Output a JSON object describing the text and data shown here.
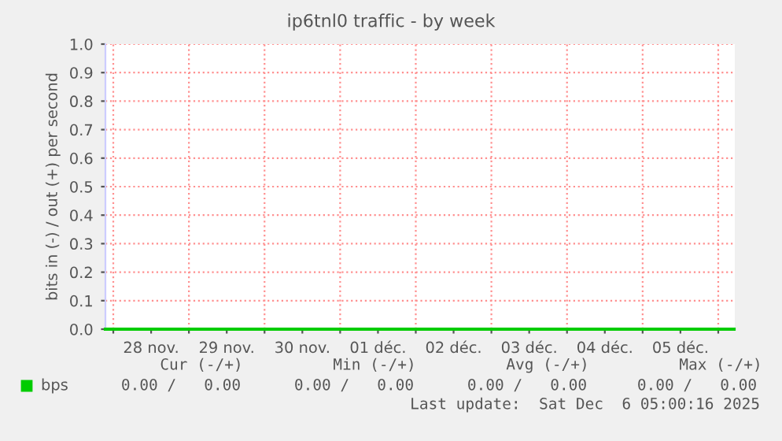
{
  "chart_data": {
    "type": "line",
    "title": "ip6tnl0 traffic - by week",
    "ylabel": "bits in (-) / out (+) per second",
    "xlim": [
      "2025-11-27T21:30",
      "2025-12-06T05:15"
    ],
    "xticks": [
      {
        "value": "2025-11-28",
        "label": null
      },
      {
        "value": "2025-11-28T12:00",
        "label": "28 nov."
      },
      {
        "value": "2025-11-29",
        "label": null
      },
      {
        "value": "2025-11-29T12:00",
        "label": "29 nov."
      },
      {
        "value": "2025-11-30",
        "label": null
      },
      {
        "value": "2025-11-30T12:00",
        "label": "30 nov."
      },
      {
        "value": "2025-12-01",
        "label": null
      },
      {
        "value": "2025-12-01T12:00",
        "label": "01 déc."
      },
      {
        "value": "2025-12-02",
        "label": null
      },
      {
        "value": "2025-12-02T12:00",
        "label": "02 déc."
      },
      {
        "value": "2025-12-03",
        "label": null
      },
      {
        "value": "2025-12-03T12:00",
        "label": "03 déc."
      },
      {
        "value": "2025-12-04",
        "label": null
      },
      {
        "value": "2025-12-04T12:00",
        "label": "04 déc."
      },
      {
        "value": "2025-12-05",
        "label": null
      },
      {
        "value": "2025-12-05T12:00",
        "label": "05 déc."
      },
      {
        "value": "2025-12-06",
        "label": null
      }
    ],
    "ylim": [
      0,
      1.0
    ],
    "yticks": [
      {
        "value": 0,
        "label": "0.0"
      },
      {
        "value": 0.1,
        "label": "0.1"
      },
      {
        "value": 0.2,
        "label": "0.2"
      },
      {
        "value": 0.3,
        "label": "0.3"
      },
      {
        "value": 0.4,
        "label": "0.4"
      },
      {
        "value": 0.5,
        "label": "0.5"
      },
      {
        "value": 0.6,
        "label": "0.6"
      },
      {
        "value": 0.7,
        "label": "0.7"
      },
      {
        "value": 0.8,
        "label": "0.8"
      },
      {
        "value": 0.9,
        "label": "0.9"
      },
      {
        "value": 1.0,
        "label": "1.0"
      }
    ],
    "grid": true,
    "legend": "bottom",
    "series": [
      {
        "name": "bps",
        "color": "#00cc00",
        "x": [
          "2025-11-27T21:30",
          "2025-12-06T05:00"
        ],
        "values": [
          0,
          0
        ]
      }
    ],
    "annotations": [
      "Cur (-/+)",
      "Min (-/+)",
      "Avg (-/+)",
      "Max (-/+)",
      "0.00 /   0.00",
      "0.00 /   0.00",
      "0.00 /   0.00",
      "0.00 /   0.00",
      "Last update:  Sat Dec  6 05:00:16 2025"
    ]
  }
}
